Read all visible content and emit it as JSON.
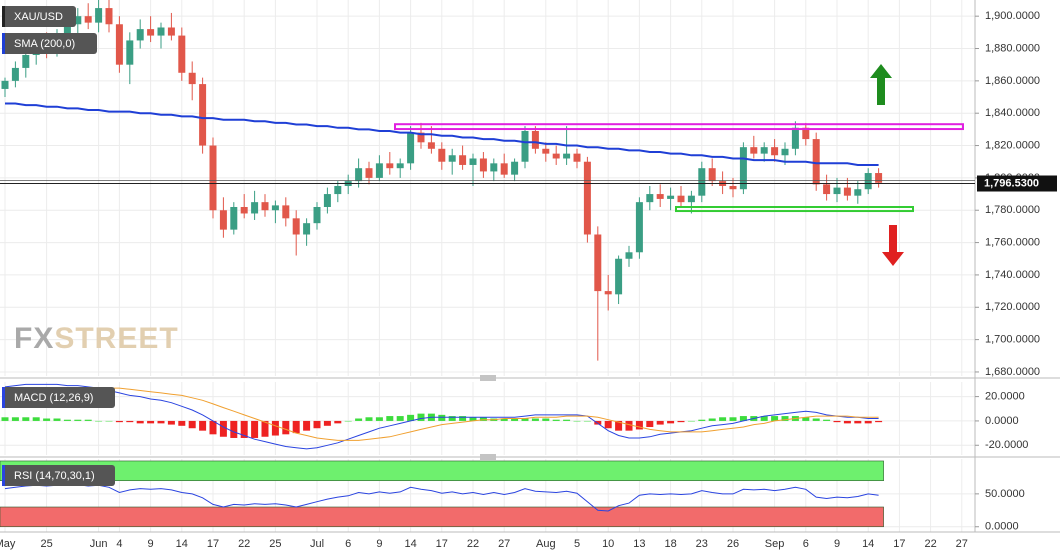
{
  "chart_data": [
    {
      "type": "candlestick",
      "title": "XAU/USD",
      "categories": [
        "May",
        null,
        null,
        null,
        "25",
        null,
        null,
        null,
        null,
        "Jun",
        null,
        "4",
        null,
        null,
        "9",
        null,
        null,
        "14",
        null,
        null,
        "17",
        null,
        null,
        "22",
        null,
        null,
        "25",
        null,
        null,
        null,
        "Jul",
        null,
        null,
        "6",
        null,
        null,
        "9",
        null,
        null,
        "14",
        null,
        null,
        "17",
        null,
        null,
        "22",
        null,
        null,
        "27",
        null,
        null,
        null,
        "Aug",
        null,
        null,
        "5",
        null,
        null,
        "10",
        null,
        null,
        "13",
        null,
        null,
        "18",
        null,
        null,
        "23",
        null,
        null,
        "26",
        null,
        null,
        null,
        "Sep",
        null,
        null,
        "6",
        null,
        null,
        "9",
        null,
        null,
        "14",
        null,
        null,
        "17",
        null,
        null,
        "22",
        null,
        null,
        "27"
      ],
      "open": [
        1855,
        1860,
        1868,
        1876,
        1882,
        1878,
        1888,
        1895,
        1900,
        1896,
        1905,
        1895,
        1870,
        1885,
        1892,
        1888,
        1893,
        1888,
        1865,
        1858,
        1820,
        1780,
        1768,
        1782,
        1778,
        1785,
        1780,
        1783,
        1775,
        1765,
        1772,
        1782,
        1790,
        1795,
        1798,
        1806,
        1800,
        1809,
        1806,
        1809,
        1828,
        1822,
        1818,
        1810,
        1814,
        1808,
        1812,
        1804,
        1809,
        1802,
        1810,
        1829,
        1818,
        1815,
        1812,
        1815,
        1810,
        1765,
        1730,
        1728,
        1750,
        1754,
        1785,
        1790,
        1787,
        1789,
        1785,
        1789,
        1806,
        1798,
        1795,
        1793,
        1819,
        1815,
        1819,
        1814,
        1818,
        1831,
        1824,
        1796,
        1790,
        1794,
        1789,
        1793,
        1803,
        null,
        null,
        null,
        null,
        null,
        null,
        null,
        null
      ],
      "high": [
        1862,
        1872,
        1880,
        1885,
        1890,
        1892,
        1898,
        1905,
        1908,
        1910,
        1912,
        1900,
        1890,
        1898,
        1900,
        1896,
        1902,
        1893,
        1872,
        1862,
        1825,
        1788,
        1785,
        1790,
        1792,
        1790,
        1786,
        1788,
        1780,
        1775,
        1785,
        1794,
        1798,
        1802,
        1812,
        1810,
        1814,
        1816,
        1812,
        1832,
        1834,
        1832,
        1822,
        1818,
        1820,
        1815,
        1816,
        1812,
        1815,
        1812,
        1832,
        1832,
        1822,
        1820,
        1832,
        1818,
        1813,
        1770,
        1740,
        1752,
        1758,
        1788,
        1795,
        1796,
        1794,
        1795,
        1792,
        1810,
        1812,
        1804,
        1800,
        1822,
        1826,
        1822,
        1824,
        1822,
        1835,
        1834,
        1828,
        1802,
        1800,
        1800,
        1798,
        1806,
        1806,
        null,
        null,
        null,
        null,
        null,
        null,
        null,
        null
      ],
      "low": [
        1850,
        1856,
        1862,
        1870,
        1874,
        1875,
        1882,
        1888,
        1892,
        1890,
        1890,
        1865,
        1858,
        1880,
        1884,
        1880,
        1885,
        1860,
        1848,
        1815,
        1775,
        1763,
        1765,
        1775,
        1774,
        1776,
        1772,
        1770,
        1752,
        1758,
        1768,
        1778,
        1785,
        1790,
        1794,
        1796,
        1798,
        1802,
        1800,
        1805,
        1818,
        1815,
        1805,
        1802,
        1805,
        1795,
        1800,
        1798,
        1800,
        1798,
        1806,
        1815,
        1810,
        1808,
        1808,
        1806,
        1760,
        1687,
        1718,
        1722,
        1745,
        1750,
        1780,
        1782,
        1780,
        1782,
        1778,
        1785,
        1795,
        1790,
        1788,
        1790,
        1812,
        1810,
        1810,
        1808,
        1814,
        1820,
        1792,
        1786,
        1785,
        1786,
        1784,
        1790,
        1794,
        null,
        null,
        null,
        null,
        null,
        null,
        null,
        null
      ],
      "close": [
        1860,
        1868,
        1876,
        1882,
        1878,
        1888,
        1895,
        1900,
        1896,
        1905,
        1895,
        1870,
        1885,
        1892,
        1888,
        1893,
        1888,
        1865,
        1858,
        1820,
        1780,
        1768,
        1782,
        1778,
        1785,
        1780,
        1783,
        1775,
        1765,
        1772,
        1782,
        1790,
        1795,
        1798,
        1806,
        1800,
        1809,
        1806,
        1809,
        1828,
        1822,
        1818,
        1810,
        1814,
        1808,
        1812,
        1804,
        1809,
        1802,
        1810,
        1829,
        1818,
        1815,
        1812,
        1815,
        1810,
        1765,
        1730,
        1728,
        1750,
        1754,
        1785,
        1790,
        1787,
        1789,
        1785,
        1789,
        1806,
        1798,
        1795,
        1793,
        1819,
        1815,
        1819,
        1814,
        1818,
        1831,
        1824,
        1796,
        1790,
        1794,
        1789,
        1793,
        1803,
        1797,
        null,
        null,
        null,
        null,
        null,
        null,
        null,
        null
      ],
      "up_color": "#3a9e84",
      "down_color": "#e1574a",
      "series": [
        {
          "name": "SMA (200,0)",
          "color": "#1f3fd6",
          "values": [
            1846,
            1846,
            1845,
            1845,
            1844,
            1844,
            1843,
            1843,
            1842,
            1842,
            1841,
            1841,
            1841,
            1840,
            1840,
            1839,
            1839,
            1838,
            1838,
            1837,
            1837,
            1836,
            1836,
            1836,
            1835,
            1835,
            1834,
            1834,
            1833,
            1833,
            1832,
            1832,
            1831,
            1831,
            1830,
            1830,
            1829,
            1829,
            1828,
            1828,
            1827,
            1827,
            1826,
            1826,
            1825,
            1825,
            1824,
            1824,
            1823,
            1823,
            1822,
            1822,
            1821,
            1821,
            1820,
            1820,
            1819,
            1819,
            1818,
            1818,
            1817,
            1817,
            1816,
            1816,
            1815,
            1815,
            1814,
            1814,
            1813,
            1813,
            1812,
            1812,
            1811,
            1811,
            1811,
            1810,
            1810,
            1810,
            1809,
            1809,
            1809,
            1809,
            1808,
            1808,
            1808,
            null,
            null,
            null,
            null,
            null,
            null,
            null,
            null
          ]
        }
      ],
      "last_price": {
        "value": 1796.53,
        "label": "1,796.5300"
      },
      "zones": [
        {
          "range": [
            1830.2,
            1833.2
          ],
          "color": "#e020e0"
        },
        {
          "range": [
            1779.5,
            1782
          ],
          "color": "#33cc33"
        }
      ],
      "watermark": [
        "FX",
        "STREET"
      ],
      "ylim": [
        1677.5,
        1910
      ],
      "yticks": [
        {
          "value": 1900,
          "label": "1,900.0000"
        },
        {
          "value": 1880,
          "label": "1,880.0000"
        },
        {
          "value": 1860,
          "label": "1,860.0000"
        },
        {
          "value": 1840,
          "label": "1,840.0000"
        },
        {
          "value": 1820,
          "label": "1,820.0000"
        },
        {
          "value": 1800,
          "label": "1,800.0000"
        },
        {
          "value": 1780,
          "label": "1,780.0000"
        },
        {
          "value": 1760,
          "label": "1,760.0000"
        },
        {
          "value": 1740,
          "label": "1,740.0000"
        },
        {
          "value": 1720,
          "label": "1,720.0000"
        },
        {
          "value": 1700,
          "label": "1,700.0000"
        },
        {
          "value": 1680,
          "label": "1,680.0000"
        }
      ],
      "grid": true
    },
    {
      "type": "macd",
      "title": "MACD (12,26,9)",
      "series": [
        {
          "color": "#2a44e0",
          "values": [
            28,
            29,
            30,
            30,
            30,
            30,
            29,
            29,
            28,
            27,
            25,
            23,
            21,
            20,
            18,
            17,
            15,
            12,
            9,
            5,
            0,
            -5,
            -9,
            -12,
            -15,
            -17,
            -19,
            -21,
            -22,
            -23,
            -22,
            -20,
            -18,
            -15,
            -12,
            -9,
            -6,
            -4,
            -2,
            0,
            2,
            3,
            3,
            3,
            3,
            3,
            3,
            3,
            3,
            3,
            4,
            5,
            5,
            5,
            5,
            5,
            4,
            -2,
            -8,
            -12,
            -14,
            -14,
            -13,
            -11,
            -10,
            -9,
            -8,
            -6,
            -4,
            -3,
            -2,
            0,
            2,
            4,
            5,
            6,
            7,
            8,
            7,
            5,
            4,
            3,
            3,
            2,
            2,
            null,
            null,
            null,
            null,
            null,
            null,
            null,
            null
          ]
        },
        {
          "color": "#f0a030",
          "values": [
            20,
            21,
            22,
            23,
            24,
            25,
            26,
            26,
            27,
            27,
            27,
            27,
            26,
            25,
            24,
            23,
            22,
            21,
            19,
            17,
            14,
            11,
            8,
            5,
            2,
            -1,
            -4,
            -7,
            -10,
            -12,
            -14,
            -15,
            -16,
            -16,
            -16,
            -15,
            -14,
            -13,
            -11,
            -9,
            -7,
            -5,
            -3,
            -2,
            -1,
            0,
            1,
            1,
            2,
            2,
            2,
            3,
            3,
            3,
            4,
            4,
            4,
            3,
            1,
            -1,
            -3,
            -5,
            -7,
            -8,
            -9,
            -9,
            -9,
            -9,
            -8,
            -7,
            -6,
            -5,
            -3,
            -2,
            0,
            1,
            2,
            3,
            4,
            4,
            4,
            4,
            3,
            3,
            3,
            null,
            null,
            null,
            null,
            null,
            null,
            null,
            null
          ]
        }
      ],
      "histogram": {
        "positive_color": "#3ddc3d",
        "negative_color": "#ee2222",
        "values": [
          3,
          3,
          3,
          3,
          2,
          2,
          1,
          1,
          1,
          0,
          0,
          -1,
          -1,
          -2,
          -2,
          -2,
          -3,
          -4,
          -6,
          -8,
          -11,
          -13,
          -14,
          -14,
          -14,
          -13,
          -12,
          -11,
          -10,
          -8,
          -6,
          -4,
          -2,
          0,
          2,
          3,
          3,
          4,
          4,
          5,
          6,
          6,
          5,
          4,
          4,
          3,
          3,
          2,
          2,
          2,
          2,
          2,
          2,
          1,
          1,
          0,
          0,
          -3,
          -6,
          -8,
          -8,
          -7,
          -5,
          -3,
          -2,
          -1,
          0,
          1,
          2,
          3,
          3,
          4,
          4,
          4,
          4,
          4,
          4,
          3,
          2,
          1,
          -1,
          -2,
          -2,
          -2,
          -1,
          null,
          null,
          null,
          null,
          null,
          null,
          null,
          null
        ]
      },
      "ylim": [
        -28,
        32
      ],
      "yticks": [
        {
          "value": 20,
          "label": "20.0000"
        },
        {
          "value": 0,
          "label": "0.0000"
        },
        {
          "value": -20,
          "label": "-20.0000"
        }
      ],
      "grid": true
    },
    {
      "type": "rsi",
      "title": "RSI (14,70,30,1)",
      "color": "#2a44e0",
      "values": [
        58,
        60,
        62,
        63,
        62,
        63,
        64,
        64,
        62,
        63,
        60,
        52,
        56,
        58,
        57,
        58,
        56,
        52,
        50,
        44,
        34,
        30,
        34,
        33,
        35,
        34,
        35,
        33,
        30,
        34,
        38,
        42,
        45,
        47,
        52,
        50,
        53,
        51,
        53,
        60,
        57,
        55,
        51,
        53,
        50,
        52,
        49,
        52,
        49,
        52,
        58,
        54,
        53,
        52,
        54,
        51,
        38,
        25,
        24,
        32,
        36,
        48,
        50,
        49,
        50,
        49,
        50,
        55,
        52,
        50,
        50,
        57,
        56,
        57,
        55,
        57,
        60,
        57,
        45,
        43,
        45,
        44,
        46,
        50,
        48,
        null,
        null,
        null,
        null,
        null,
        null,
        null,
        null
      ],
      "bands": [
        {
          "range": [
            70,
            100
          ],
          "color": "#6ef06e"
        },
        {
          "range": [
            0,
            30
          ],
          "color": "#f26b6b"
        }
      ],
      "ylim": [
        -8,
        103
      ],
      "yticks": [
        {
          "value": 50,
          "label": "50.0000"
        },
        {
          "value": 0,
          "label": "0.0000"
        }
      ],
      "grid": true
    }
  ]
}
